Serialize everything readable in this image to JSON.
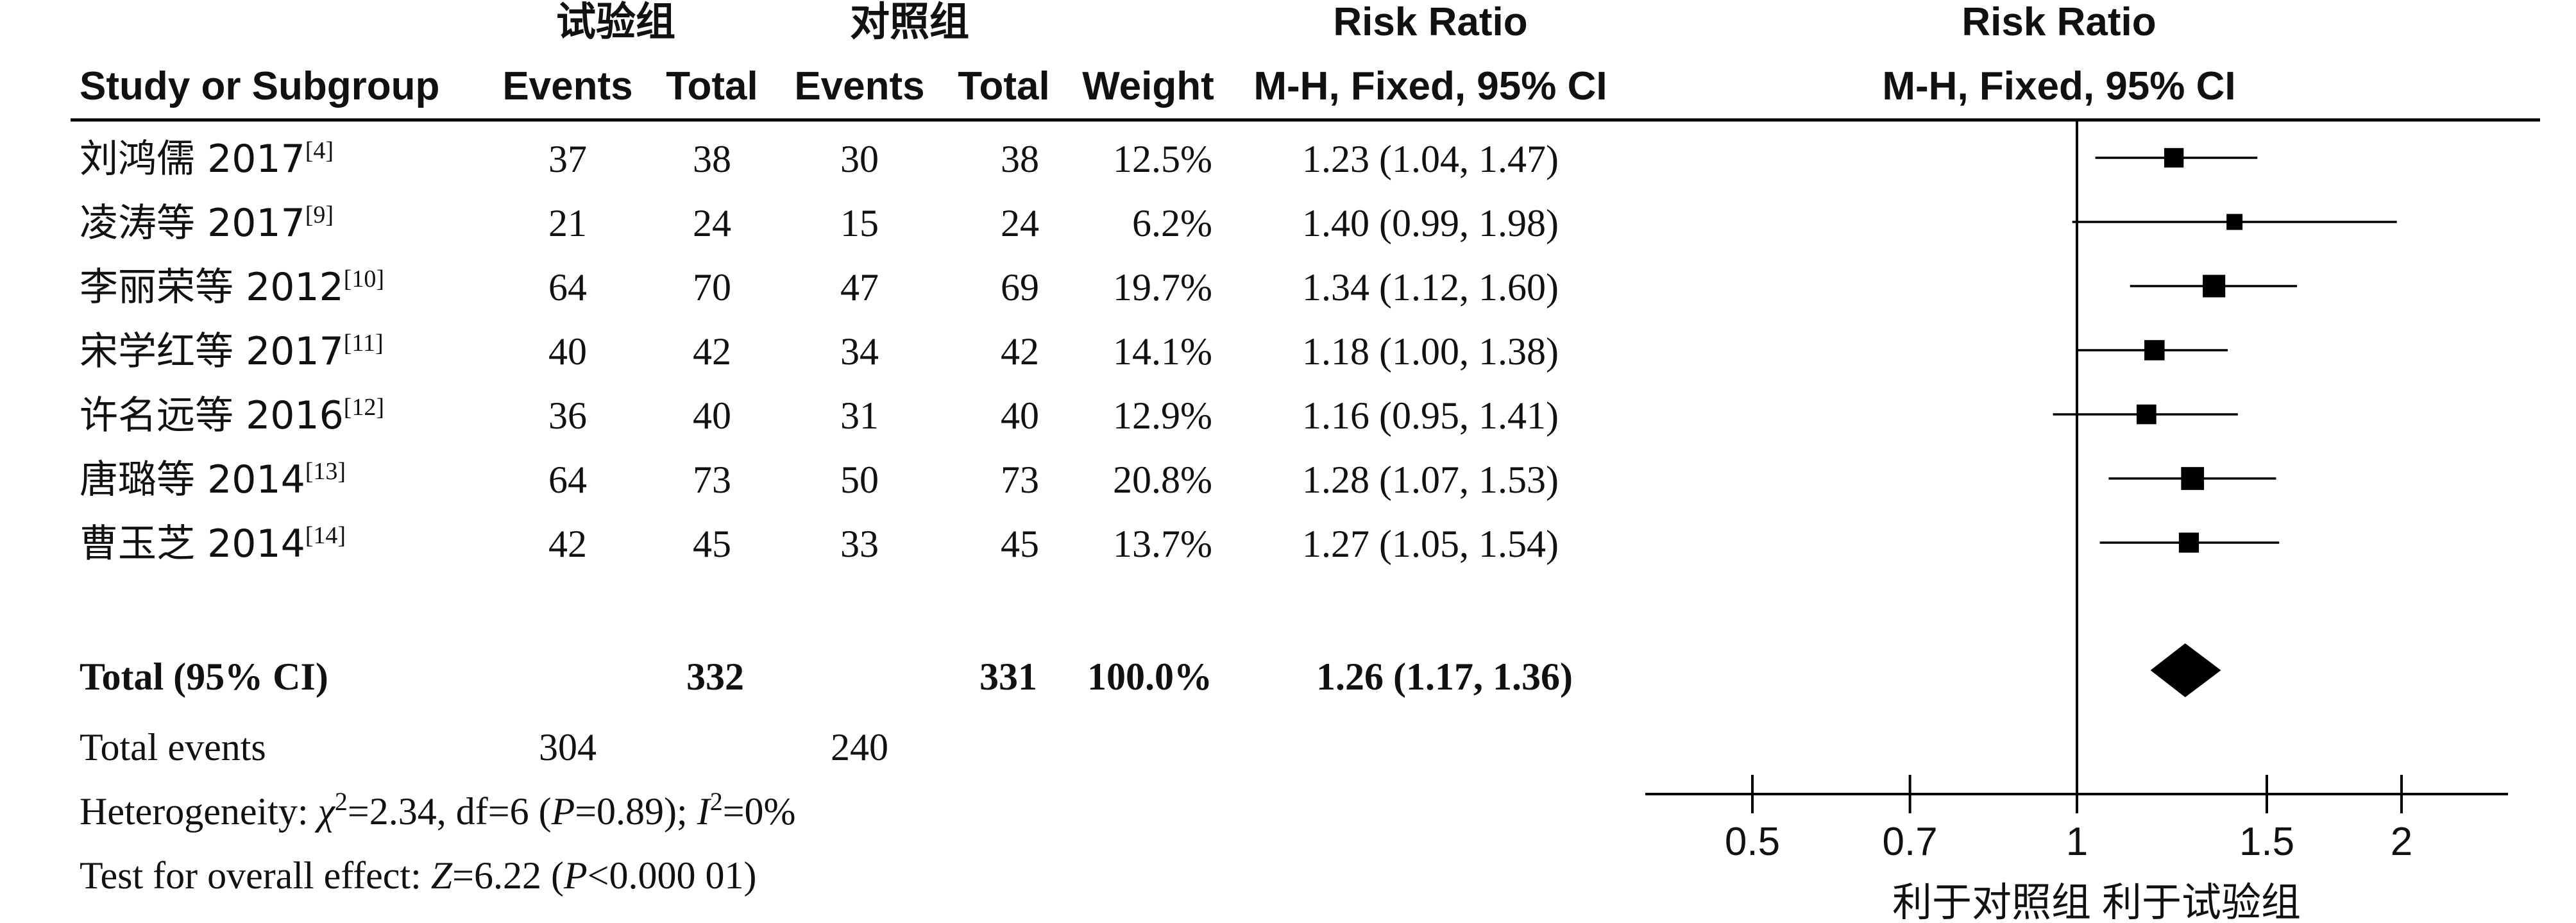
{
  "headers": {
    "group1": "试验组",
    "group2": "对照组",
    "rr_title": "Risk Ratio",
    "rr_method": "M-H, Fixed, 95% CI",
    "plot_title": "Risk Ratio",
    "plot_method": "M-H, Fixed, 95% CI",
    "study": "Study or Subgroup",
    "events1": "Events",
    "total1": "Total",
    "events2": "Events",
    "total2": "Total",
    "weight": "Weight"
  },
  "studies": [
    {
      "name": "刘鸿儒 2017",
      "ref": "[4]",
      "events1": "37",
      "total1": "38",
      "events2": "30",
      "total2": "38",
      "weight": "12.5%",
      "ci_text": "1.23 (1.04, 1.47)"
    },
    {
      "name": "凌涛等 2017",
      "ref": "[9]",
      "events1": "21",
      "total1": "24",
      "events2": "15",
      "total2": "24",
      "weight": "6.2%",
      "ci_text": "1.40 (0.99, 1.98)"
    },
    {
      "name": "李丽荣等 2012",
      "ref": "[10]",
      "events1": "64",
      "total1": "70",
      "events2": "47",
      "total2": "69",
      "weight": "19.7%",
      "ci_text": "1.34 (1.12, 1.60)"
    },
    {
      "name": "宋学红等 2017",
      "ref": "[11]",
      "events1": "40",
      "total1": "42",
      "events2": "34",
      "total2": "42",
      "weight": "14.1%",
      "ci_text": "1.18 (1.00, 1.38)"
    },
    {
      "name": "许名远等 2016",
      "ref": "[12]",
      "events1": "36",
      "total1": "40",
      "events2": "31",
      "total2": "40",
      "weight": "12.9%",
      "ci_text": "1.16 (0.95, 1.41)"
    },
    {
      "name": "唐璐等 2014",
      "ref": "[13]",
      "events1": "64",
      "total1": "73",
      "events2": "50",
      "total2": "73",
      "weight": "20.8%",
      "ci_text": "1.28 (1.07, 1.53)"
    },
    {
      "name": "曹玉芝 2014",
      "ref": "[14]",
      "events1": "42",
      "total1": "45",
      "events2": "33",
      "total2": "45",
      "weight": "13.7%",
      "ci_text": "1.27 (1.05, 1.54)"
    }
  ],
  "total": {
    "label": "Total (95% CI)",
    "total1": "332",
    "total2": "331",
    "weight": "100.0%",
    "ci_text": "1.26 (1.17, 1.36)"
  },
  "total_events": {
    "label": "Total events",
    "events1": "304",
    "events2": "240"
  },
  "heterogeneity": {
    "prefix": "Heterogeneity: ",
    "chi_symbol": "χ",
    "chi_value": "=2.34, df=6 (",
    "p_symbol": "P",
    "p_value": "=0.89); ",
    "i_symbol": "I",
    "i_value": "=0%"
  },
  "overall_effect": {
    "prefix": "Test for overall effect: ",
    "z_symbol": "Z",
    "z_value": "=6.22 (",
    "p_symbol": "P",
    "p_value": "<0.000 01)"
  },
  "favours": {
    "left": "利于对照组",
    "right": "利于试验组"
  },
  "chart_data": {
    "type": "forest",
    "xscale": "log",
    "xlim": [
      0.5,
      2
    ],
    "xticks": [
      0.5,
      0.7,
      1,
      1.5,
      2
    ],
    "xtick_labels": [
      "0.5",
      "0.7",
      "1",
      "1.5",
      "2"
    ],
    "reference_line": 1,
    "studies": [
      {
        "rr": 1.23,
        "lower": 1.04,
        "upper": 1.47,
        "weight": 12.5
      },
      {
        "rr": 1.4,
        "lower": 0.99,
        "upper": 1.98,
        "weight": 6.2
      },
      {
        "rr": 1.34,
        "lower": 1.12,
        "upper": 1.6,
        "weight": 19.7
      },
      {
        "rr": 1.18,
        "lower": 1.0,
        "upper": 1.38,
        "weight": 14.1
      },
      {
        "rr": 1.16,
        "lower": 0.95,
        "upper": 1.41,
        "weight": 12.9
      },
      {
        "rr": 1.28,
        "lower": 1.07,
        "upper": 1.53,
        "weight": 20.8
      },
      {
        "rr": 1.27,
        "lower": 1.05,
        "upper": 1.54,
        "weight": 13.7
      }
    ],
    "pooled": {
      "rr": 1.26,
      "lower": 1.17,
      "upper": 1.36
    },
    "colors": {
      "marker": "#000000",
      "line": "#000000",
      "text": "#111111"
    }
  }
}
